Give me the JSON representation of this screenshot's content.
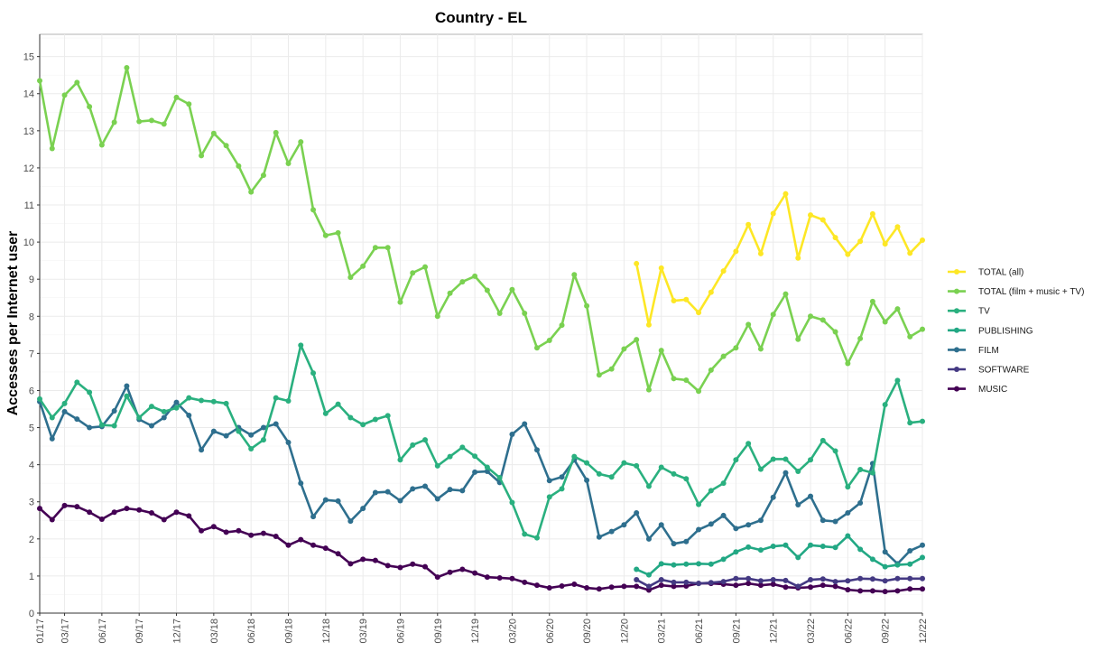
{
  "chart_data": {
    "type": "line",
    "title": "Country - EL",
    "xlabel": "",
    "ylabel": "Accesses per Internet user",
    "ylim": [
      0,
      15.6
    ],
    "yticks": [
      0,
      1,
      2,
      3,
      4,
      5,
      6,
      7,
      8,
      9,
      10,
      11,
      12,
      13,
      14,
      15
    ],
    "grid": true,
    "legend_position": "right",
    "x": [
      "01/17",
      "02/17",
      "03/17",
      "04/17",
      "05/17",
      "06/17",
      "07/17",
      "08/17",
      "09/17",
      "10/17",
      "11/17",
      "12/17",
      "01/18",
      "02/18",
      "03/18",
      "04/18",
      "05/18",
      "06/18",
      "07/18",
      "08/18",
      "09/18",
      "10/18",
      "11/18",
      "12/18",
      "01/19",
      "02/19",
      "03/19",
      "04/19",
      "05/19",
      "06/19",
      "07/19",
      "08/19",
      "09/19",
      "10/19",
      "11/19",
      "12/19",
      "01/20",
      "02/20",
      "03/20",
      "04/20",
      "05/20",
      "06/20",
      "07/20",
      "08/20",
      "09/20",
      "10/20",
      "11/20",
      "12/20",
      "01/21",
      "02/21",
      "03/21",
      "04/21",
      "05/21",
      "06/21",
      "07/21",
      "08/21",
      "09/21",
      "10/21",
      "11/21",
      "12/21",
      "01/22",
      "02/22",
      "03/22",
      "04/22",
      "05/22",
      "06/22",
      "07/22",
      "08/22",
      "09/22",
      "10/22",
      "11/22",
      "12/22"
    ],
    "x_tick_labels": [
      "01/17",
      "03/17",
      "06/17",
      "09/17",
      "12/17",
      "03/18",
      "06/18",
      "09/18",
      "12/18",
      "03/19",
      "06/19",
      "09/19",
      "12/19",
      "03/20",
      "06/20",
      "09/20",
      "12/20",
      "03/21",
      "06/21",
      "09/21",
      "12/21",
      "03/22",
      "06/22",
      "09/22",
      "12/22"
    ],
    "series": [
      {
        "name": "TOTAL (all)",
        "color": "#fde725",
        "values": [
          null,
          null,
          null,
          null,
          null,
          null,
          null,
          null,
          null,
          null,
          null,
          null,
          null,
          null,
          null,
          null,
          null,
          null,
          null,
          null,
          null,
          null,
          null,
          null,
          null,
          null,
          null,
          null,
          null,
          null,
          null,
          null,
          null,
          null,
          null,
          null,
          null,
          null,
          null,
          null,
          null,
          null,
          null,
          null,
          null,
          null,
          null,
          null,
          9.42,
          7.77,
          9.3,
          8.42,
          8.45,
          8.1,
          8.65,
          9.22,
          9.75,
          10.47,
          9.69,
          10.77,
          11.3,
          9.57,
          10.73,
          10.6,
          10.12,
          9.67,
          10.02,
          10.76,
          9.95,
          10.41,
          9.7,
          10.05
        ]
      },
      {
        "name": "TOTAL (film + music + TV)",
        "color": "#7ad151",
        "values": [
          14.35,
          12.52,
          13.96,
          14.3,
          13.65,
          12.62,
          13.23,
          14.7,
          13.25,
          13.28,
          13.18,
          13.9,
          13.72,
          12.33,
          12.93,
          12.6,
          12.05,
          11.35,
          11.8,
          12.95,
          12.12,
          12.7,
          10.87,
          10.18,
          10.25,
          9.05,
          9.35,
          9.85,
          9.85,
          8.38,
          9.17,
          9.33,
          8.0,
          8.62,
          8.93,
          9.08,
          8.7,
          8.08,
          8.72,
          8.08,
          7.15,
          7.35,
          7.76,
          9.12,
          8.28,
          6.42,
          6.58,
          7.12,
          7.37,
          6.02,
          7.08,
          6.32,
          6.28,
          5.98,
          6.55,
          6.92,
          7.15,
          7.78,
          7.12,
          8.05,
          8.6,
          7.38,
          8.0,
          7.9,
          7.58,
          6.73,
          7.4,
          8.4,
          7.85,
          8.2,
          7.45,
          7.65
        ]
      },
      {
        "name": "TV",
        "color": "#2ab07f",
        "values": [
          5.77,
          5.27,
          5.65,
          6.22,
          5.95,
          5.07,
          5.05,
          5.85,
          5.27,
          5.57,
          5.43,
          5.53,
          5.8,
          5.73,
          5.7,
          5.65,
          4.9,
          4.43,
          4.67,
          5.8,
          5.72,
          7.22,
          6.47,
          5.38,
          5.63,
          5.27,
          5.08,
          5.22,
          5.32,
          4.13,
          4.53,
          4.67,
          3.97,
          4.22,
          4.47,
          4.23,
          3.93,
          3.65,
          2.98,
          2.13,
          2.03,
          3.13,
          3.35,
          4.22,
          4.05,
          3.75,
          3.67,
          4.05,
          3.97,
          3.42,
          3.93,
          3.75,
          3.62,
          2.93,
          3.3,
          3.5,
          4.13,
          4.57,
          3.88,
          4.15,
          4.15,
          3.82,
          4.13,
          4.65,
          4.37,
          3.4,
          3.87,
          3.78,
          5.62,
          6.27,
          5.13,
          5.17
        ]
      },
      {
        "name": "PUBLISHING",
        "color": "#22a884",
        "values": [
          null,
          null,
          null,
          null,
          null,
          null,
          null,
          null,
          null,
          null,
          null,
          null,
          null,
          null,
          null,
          null,
          null,
          null,
          null,
          null,
          null,
          null,
          null,
          null,
          null,
          null,
          null,
          null,
          null,
          null,
          null,
          null,
          null,
          null,
          null,
          null,
          null,
          null,
          null,
          null,
          null,
          null,
          null,
          null,
          null,
          null,
          null,
          null,
          1.18,
          1.03,
          1.33,
          1.3,
          1.32,
          1.33,
          1.32,
          1.45,
          1.65,
          1.78,
          1.7,
          1.8,
          1.83,
          1.5,
          1.83,
          1.8,
          1.77,
          2.08,
          1.72,
          1.45,
          1.25,
          1.3,
          1.32,
          1.5
        ]
      },
      {
        "name": "FILM",
        "color": "#2e6f8e",
        "values": [
          5.7,
          4.7,
          5.43,
          5.23,
          5.0,
          5.03,
          5.45,
          6.12,
          5.22,
          5.05,
          5.27,
          5.68,
          5.33,
          4.4,
          4.9,
          4.78,
          5.0,
          4.8,
          5.0,
          5.1,
          4.6,
          3.5,
          2.6,
          3.05,
          3.02,
          2.48,
          2.82,
          3.25,
          3.27,
          3.03,
          3.35,
          3.42,
          3.08,
          3.33,
          3.3,
          3.8,
          3.82,
          3.52,
          4.82,
          5.1,
          4.4,
          3.57,
          3.67,
          4.13,
          3.58,
          2.05,
          2.2,
          2.38,
          2.7,
          2.0,
          2.38,
          1.87,
          1.93,
          2.25,
          2.4,
          2.63,
          2.28,
          2.38,
          2.5,
          3.12,
          3.78,
          2.92,
          3.15,
          2.5,
          2.47,
          2.7,
          2.97,
          4.03,
          1.65,
          1.33,
          1.68,
          1.83
        ]
      },
      {
        "name": "SOFTWARE",
        "color": "#443983",
        "values": [
          null,
          null,
          null,
          null,
          null,
          null,
          null,
          null,
          null,
          null,
          null,
          null,
          null,
          null,
          null,
          null,
          null,
          null,
          null,
          null,
          null,
          null,
          null,
          null,
          null,
          null,
          null,
          null,
          null,
          null,
          null,
          null,
          null,
          null,
          null,
          null,
          null,
          null,
          null,
          null,
          null,
          null,
          null,
          null,
          null,
          null,
          null,
          null,
          0.9,
          0.72,
          0.9,
          0.83,
          0.83,
          0.8,
          0.82,
          0.85,
          0.93,
          0.93,
          0.87,
          0.9,
          0.88,
          0.72,
          0.9,
          0.92,
          0.85,
          0.87,
          0.93,
          0.92,
          0.87,
          0.93,
          0.93,
          0.93
        ]
      },
      {
        "name": "MUSIC",
        "color": "#440154",
        "values": [
          2.82,
          2.52,
          2.9,
          2.87,
          2.72,
          2.53,
          2.72,
          2.82,
          2.78,
          2.7,
          2.52,
          2.72,
          2.62,
          2.22,
          2.33,
          2.18,
          2.22,
          2.1,
          2.15,
          2.07,
          1.83,
          1.98,
          1.83,
          1.75,
          1.6,
          1.33,
          1.45,
          1.42,
          1.28,
          1.23,
          1.32,
          1.25,
          0.97,
          1.1,
          1.18,
          1.08,
          0.97,
          0.95,
          0.93,
          0.83,
          0.75,
          0.68,
          0.73,
          0.78,
          0.68,
          0.65,
          0.7,
          0.72,
          0.72,
          0.62,
          0.75,
          0.72,
          0.73,
          0.8,
          0.8,
          0.78,
          0.75,
          0.8,
          0.75,
          0.78,
          0.7,
          0.68,
          0.7,
          0.75,
          0.72,
          0.63,
          0.6,
          0.6,
          0.58,
          0.6,
          0.65,
          0.65
        ]
      }
    ]
  }
}
